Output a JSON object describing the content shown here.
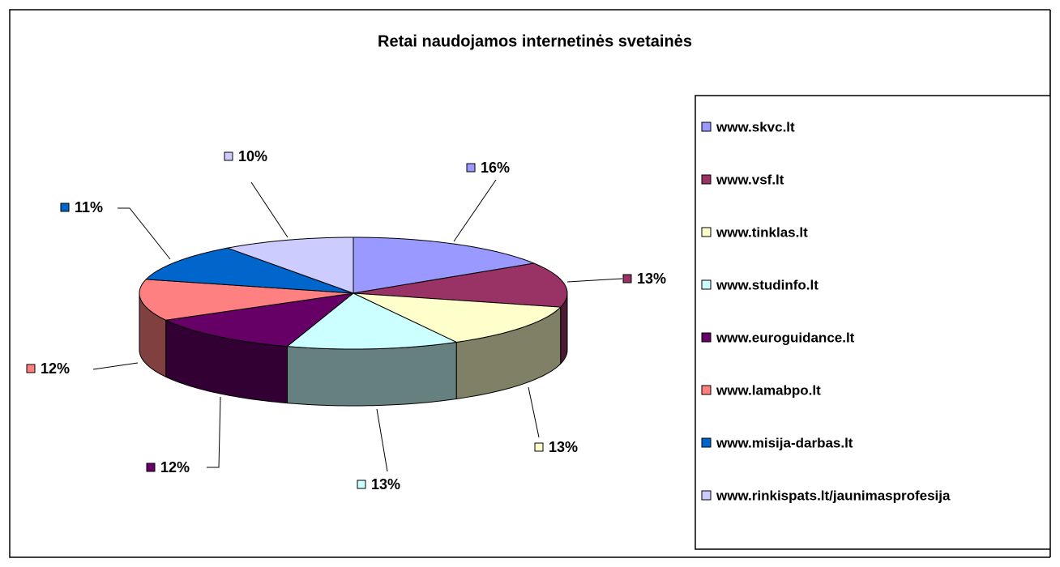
{
  "chart_data": {
    "type": "pie3d",
    "title": "Retai naudojamos internetinės svetainės",
    "categories": [
      "www.skvc.lt",
      "www.vsf.lt",
      "www.tinklas.lt",
      "www.studinfo.lt",
      "www.euroguidance.lt",
      "www.lamabpo.lt",
      "www.misija-darbas.lt",
      "www.rinkispats.lt/jaunimasprofesija"
    ],
    "values": [
      16,
      13,
      13,
      13,
      12,
      12,
      11,
      10
    ],
    "value_labels": [
      "16%",
      "13%",
      "13%",
      "13%",
      "12%",
      "12%",
      "11%",
      "10%"
    ],
    "colors": [
      "#9999ff",
      "#993366",
      "#ffffcc",
      "#ccffff",
      "#660066",
      "#ff8080",
      "#0066cc",
      "#ccccff"
    ],
    "legend": "right"
  }
}
